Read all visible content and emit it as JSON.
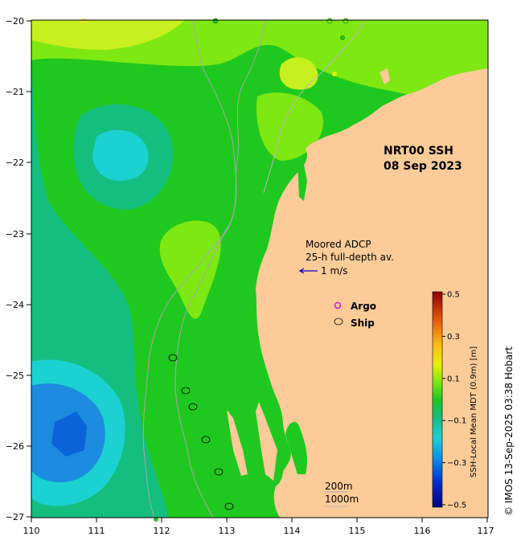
{
  "map": {
    "title_line1": "NRT00 SSH",
    "title_line2": "08 Sep 2023",
    "x_ticks": [
      "110",
      "111",
      "112",
      "113",
      "114",
      "115",
      "116",
      "117"
    ],
    "y_ticks": [
      "−20",
      "−21",
      "−22",
      "−23",
      "−24",
      "−25",
      "−26",
      "−27"
    ],
    "adcp_label_line1": "Moored ADCP",
    "adcp_label_line2": "25-h full-depth av.",
    "adcp_scale_label": "1 m/s",
    "legend_argo": "Argo",
    "legend_ship": "Ship",
    "contour_200": "200m",
    "contour_1000": "1000m",
    "credit": "© IMOS 13-Sep-2025 03:38 Hobart"
  },
  "colorbar": {
    "title": "SSH-Local Mean MDT (0.9m) [m]",
    "ticks": [
      "0.5",
      "0.3",
      "0.1",
      "−0.1",
      "−0.3",
      "−0.5"
    ],
    "tick_values": [
      0.5,
      0.3,
      0.1,
      -0.1,
      -0.3,
      -0.5
    ],
    "range": [
      -0.5,
      0.5
    ]
  },
  "colors": {
    "land": "#fccb98",
    "ocean_green": "#1fc81f",
    "light_green": "#7ee812",
    "yellow_green": "#c8f01e",
    "teal": "#14be7e",
    "cyan": "#1cd1d1",
    "blue": "#1c8be0",
    "deep_blue": "#0a64d8"
  }
}
